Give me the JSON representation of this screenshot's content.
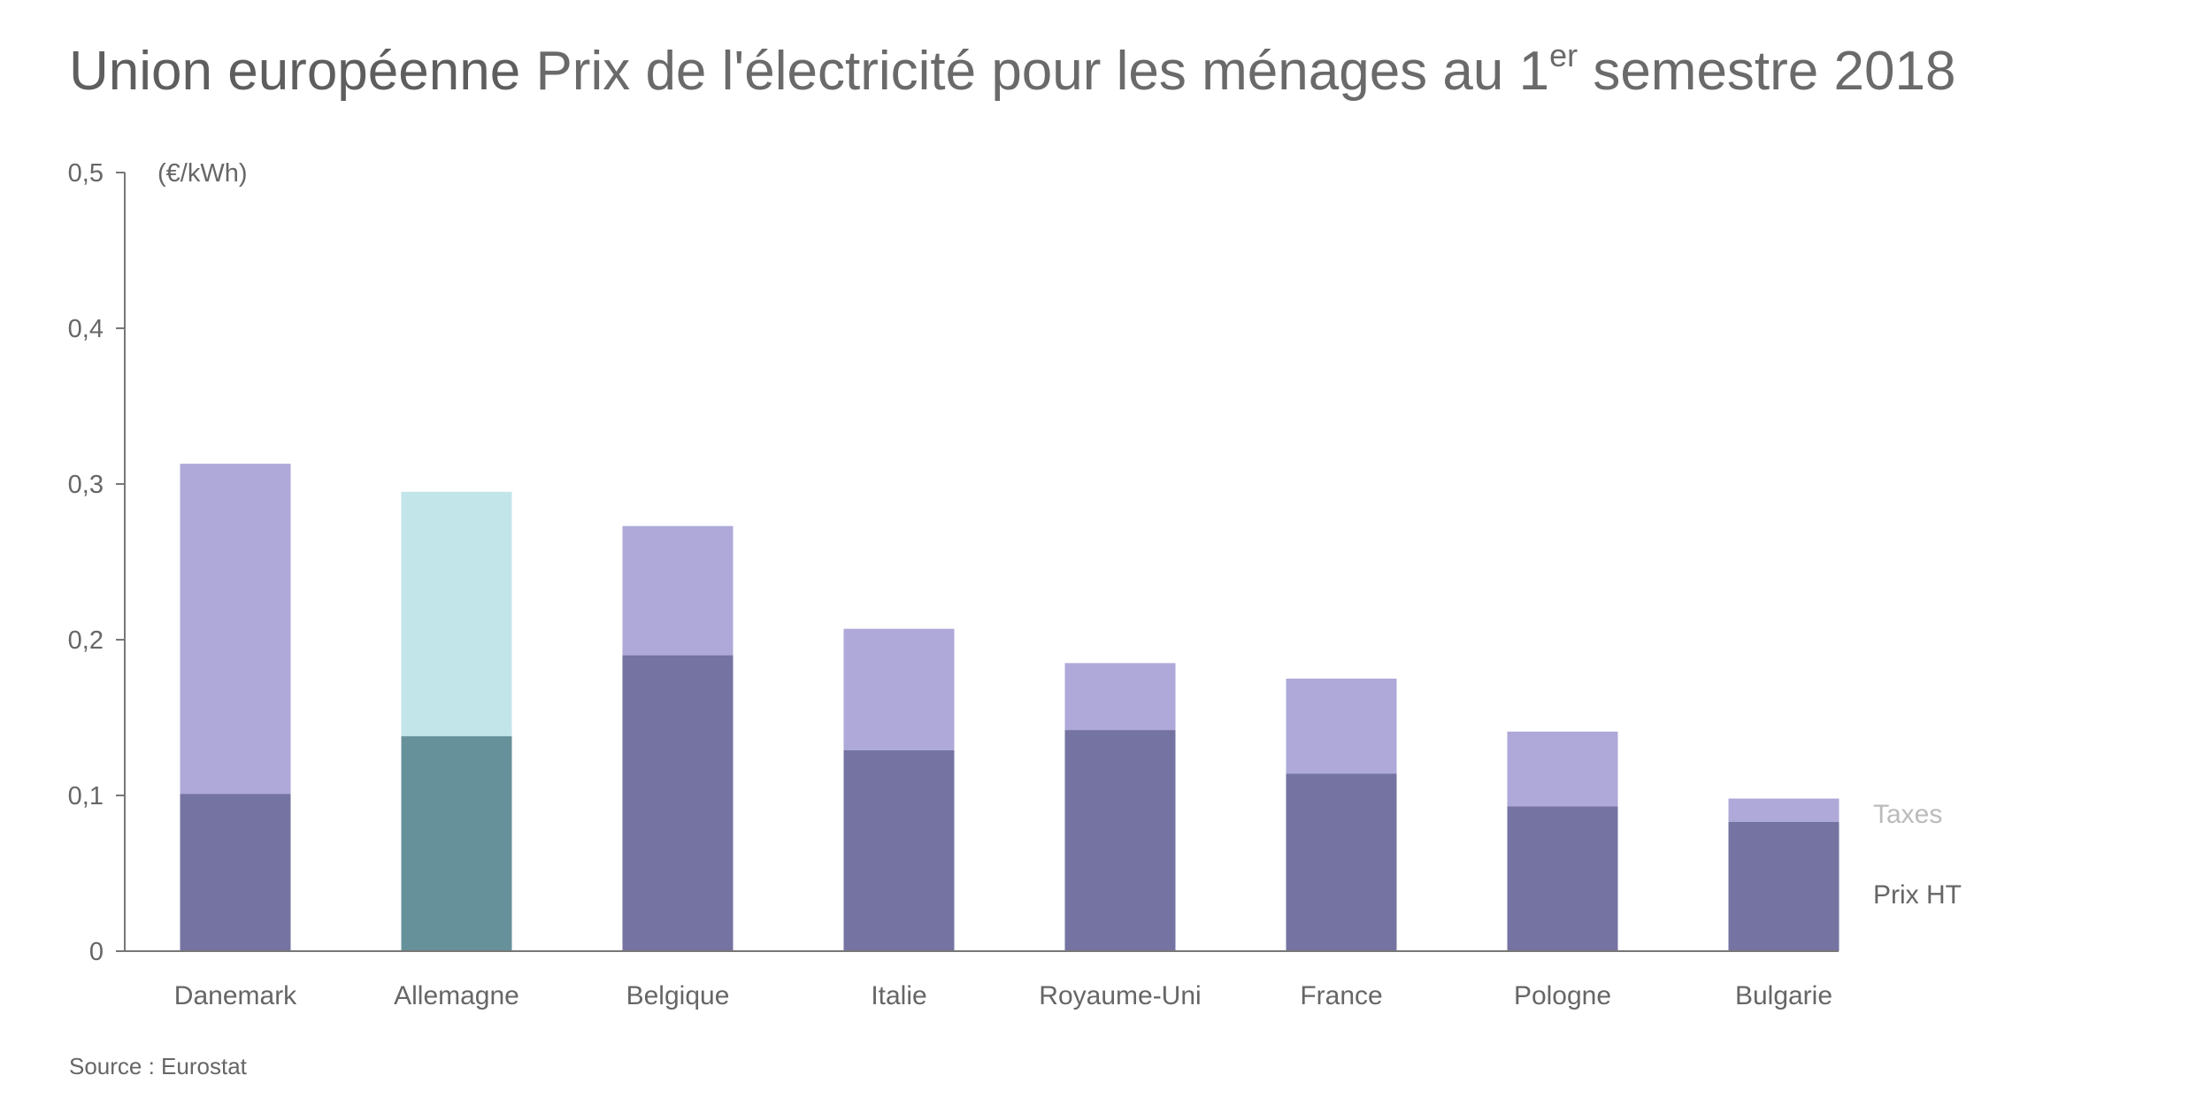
{
  "chart_data": {
    "type": "bar",
    "stacked": true,
    "title_bold": "Union européenne",
    "title_main": "Prix de l'électricité pour les ménages au 1",
    "title_sup": "er",
    "title_end": " semestre 2018",
    "ylabel": "(€/kWh)",
    "ylim": [
      0,
      0.5
    ],
    "yticks": [
      0,
      0.1,
      0.2,
      0.3,
      0.4,
      0.5
    ],
    "ytick_labels": [
      "0",
      "0,1",
      "0,2",
      "0,3",
      "0,4",
      "0,5"
    ],
    "categories": [
      "Danemark",
      "Allemagne",
      "Belgique",
      "Italie",
      "Royaume-Uni",
      "France",
      "Pologne",
      "Bulgarie"
    ],
    "series": [
      {
        "name": "Prix HT",
        "values": [
          0.101,
          0.138,
          0.19,
          0.129,
          0.142,
          0.114,
          0.093,
          0.083
        ]
      },
      {
        "name": "Taxes",
        "values": [
          0.212,
          0.157,
          0.083,
          0.078,
          0.043,
          0.061,
          0.048,
          0.015
        ]
      }
    ],
    "highlight_category": "Allemagne",
    "colors": {
      "base": "#7573a1",
      "taxes": "#aea9d8",
      "base_highlight": "#66919a",
      "taxes_highlight": "#c2e5ea",
      "legend_taxes": "#bbbbbb",
      "legend_base": "#666666"
    },
    "legend_placement": "right",
    "grid": false,
    "source": "Source : Eurostat"
  }
}
